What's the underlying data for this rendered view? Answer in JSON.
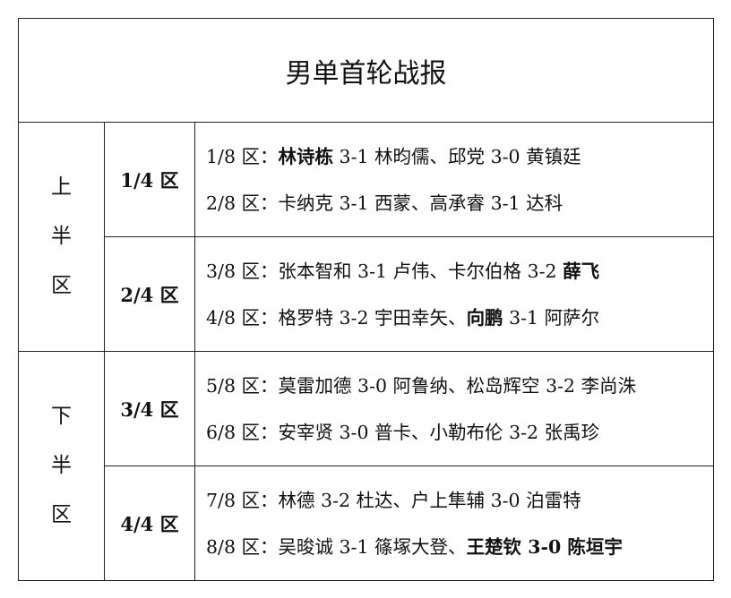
{
  "title": "男单首轮战报",
  "halves": [
    {
      "label": [
        "上",
        "半",
        "区"
      ],
      "quarters": [
        {
          "label": "1/4 区",
          "lines": [
            {
              "prefix": "1/8 区：",
              "segments": [
                {
                  "text": "林诗栋",
                  "bold": true
                },
                {
                  "text": " 3-1 林昀儒、邱党 3-0 黄镇廷",
                  "bold": false
                }
              ]
            },
            {
              "prefix": "2/8 区：",
              "segments": [
                {
                  "text": "卡纳克 3-1 西蒙、高承睿 3-1 达科",
                  "bold": false
                }
              ]
            }
          ]
        },
        {
          "label": "2/4 区",
          "lines": [
            {
              "prefix": "3/8 区：",
              "segments": [
                {
                  "text": "张本智和 3-1 卢伟、卡尔伯格 3-2 ",
                  "bold": false
                },
                {
                  "text": "薛飞",
                  "bold": true
                }
              ]
            },
            {
              "prefix": "4/8 区：",
              "segments": [
                {
                  "text": "格罗特 3-2 宇田幸矢、",
                  "bold": false
                },
                {
                  "text": "向鹏",
                  "bold": true
                },
                {
                  "text": " 3-1 阿萨尔",
                  "bold": false
                }
              ]
            }
          ]
        }
      ]
    },
    {
      "label": [
        "下",
        "半",
        "区"
      ],
      "quarters": [
        {
          "label": "3/4 区",
          "lines": [
            {
              "prefix": "5/8 区：",
              "segments": [
                {
                  "text": "莫雷加德 3-0 阿鲁纳、松岛辉空 3-2 李尚洙",
                  "bold": false
                }
              ]
            },
            {
              "prefix": "6/8 区：",
              "segments": [
                {
                  "text": "安宰贤 3-0 普卡、小勒布伦 3-2 张禹珍",
                  "bold": false
                }
              ]
            }
          ]
        },
        {
          "label": "4/4 区",
          "lines": [
            {
              "prefix": "7/8 区：",
              "segments": [
                {
                  "text": "林德 3-2 杜达、户上隼辅 3-0 泊雷特",
                  "bold": false
                }
              ]
            },
            {
              "prefix": "8/8 区：",
              "segments": [
                {
                  "text": "吴晙诚 3-1 篠塚大登、",
                  "bold": false
                },
                {
                  "text": "王楚钦 3-0 陈垣宇",
                  "bold": true
                }
              ]
            }
          ]
        }
      ]
    }
  ]
}
